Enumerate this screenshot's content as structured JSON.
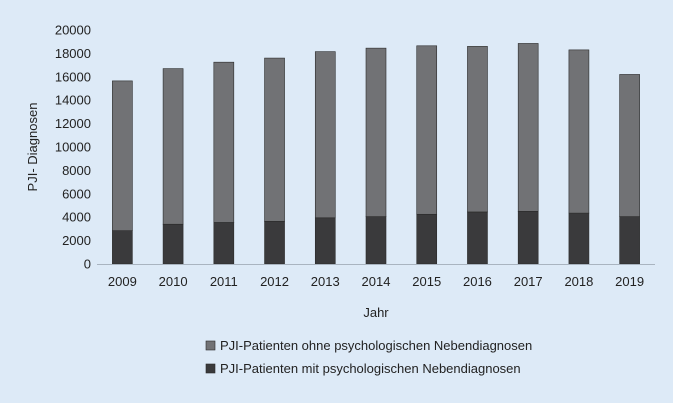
{
  "chart_data": {
    "type": "bar",
    "stacked": true,
    "title": "",
    "xlabel": "Jahr",
    "ylabel": "PJI- Diagnosen",
    "ylim": [
      0,
      20000
    ],
    "yticks": [
      0,
      2000,
      4000,
      6000,
      8000,
      10000,
      12000,
      14000,
      16000,
      18000,
      20000
    ],
    "grid": false,
    "legend_position": "bottom",
    "categories": [
      "2009",
      "2010",
      "2011",
      "2012",
      "2013",
      "2014",
      "2015",
      "2016",
      "2017",
      "2018",
      "2019"
    ],
    "series": [
      {
        "name": "PJI-Patienten mit psychologischen Nebendiagnosen",
        "color": "#3a3a3c",
        "values": [
          2850,
          3400,
          3550,
          3650,
          3950,
          4050,
          4250,
          4450,
          4500,
          4350,
          4050
        ]
      },
      {
        "name": "PJI-Patienten ohne psychologischen Nebendiagnosen",
        "color": "#717275",
        "values": [
          12800,
          13300,
          13700,
          13950,
          14200,
          14400,
          14400,
          14150,
          14350,
          13950,
          12150
        ]
      }
    ]
  }
}
